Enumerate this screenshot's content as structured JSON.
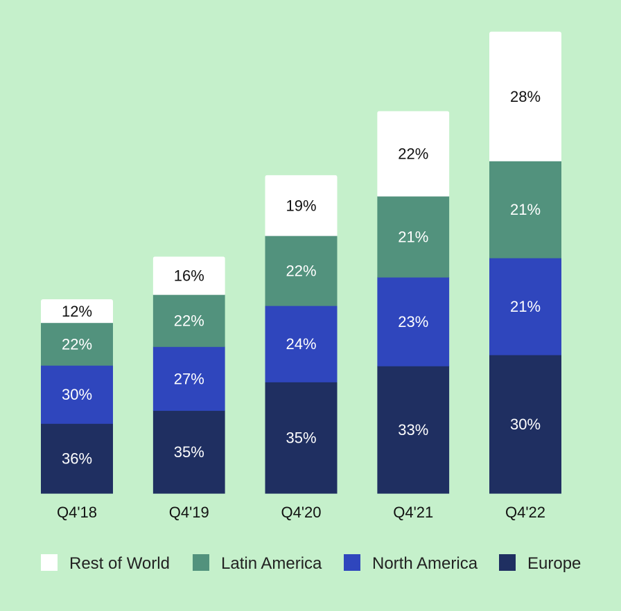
{
  "chart_data": {
    "type": "bar",
    "stacked": true,
    "title": "",
    "xlabel": "",
    "ylabel": "",
    "categories": [
      "Q4'18",
      "Q4'19",
      "Q4'20",
      "Q4'21",
      "Q4'22"
    ],
    "relative_totals": [
      100,
      122,
      164,
      197,
      238
    ],
    "series": [
      {
        "name": "Europe",
        "color": "#1f2f61",
        "label_color": "#ffffff",
        "values": [
          36,
          35,
          35,
          33,
          30
        ],
        "labels": [
          "36%",
          "35%",
          "35%",
          "33%",
          "30%"
        ]
      },
      {
        "name": "North America",
        "color": "#2f46bd",
        "label_color": "#ffffff",
        "values": [
          30,
          27,
          24,
          23,
          21
        ],
        "labels": [
          "30%",
          "27%",
          "24%",
          "23%",
          "21%"
        ]
      },
      {
        "name": "Latin America",
        "color": "#52927d",
        "label_color": "#ffffff",
        "values": [
          22,
          22,
          22,
          21,
          21
        ],
        "labels": [
          "22%",
          "22%",
          "22%",
          "21%",
          "21%"
        ]
      },
      {
        "name": "Rest of World",
        "color": "#ffffff",
        "label_color": "#111111",
        "values": [
          12,
          16,
          19,
          22,
          28
        ],
        "labels": [
          "12%",
          "16%",
          "19%",
          "22%",
          "28%"
        ]
      }
    ],
    "legend": {
      "placement": "bottom",
      "order": [
        "Rest of World",
        "Latin America",
        "North America",
        "Europe"
      ]
    },
    "grid": false
  }
}
